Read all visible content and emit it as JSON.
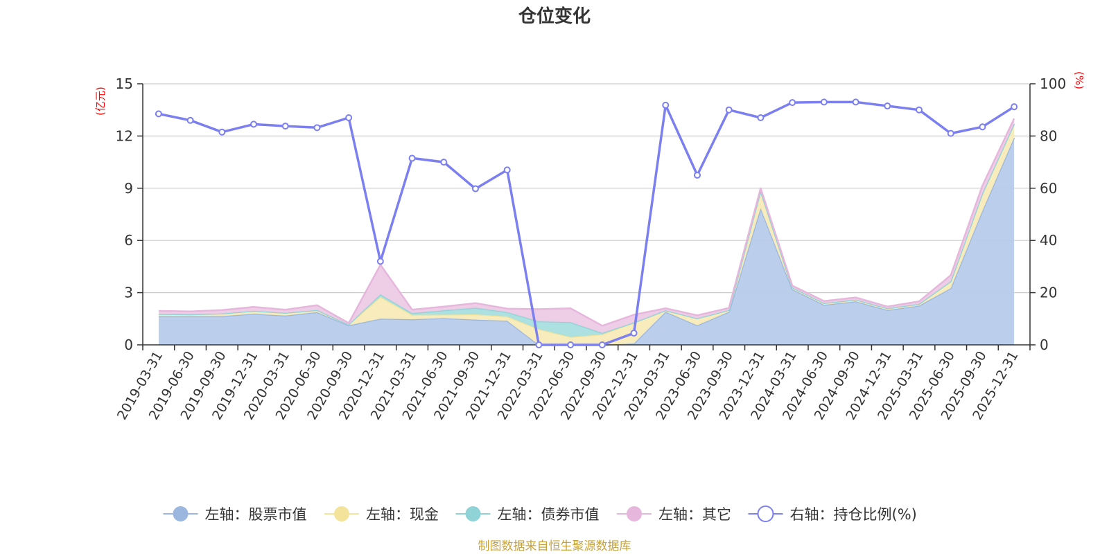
{
  "chart_data": {
    "type": "area",
    "title": "仓位变化",
    "left_axis": {
      "unit": "(亿元)",
      "ylim": [
        0,
        15
      ],
      "ticks": [
        "0",
        "3",
        "6",
        "9",
        "12",
        "15"
      ],
      "tick_values": [
        0,
        3,
        6,
        9,
        12,
        15
      ]
    },
    "right_axis": {
      "unit": "(%)",
      "ylim": [
        0,
        100
      ],
      "ticks": [
        "0",
        "20",
        "40",
        "60",
        "80",
        "100"
      ],
      "tick_values": [
        0,
        20,
        40,
        60,
        80,
        100
      ]
    },
    "categories": [
      "2019-03-31",
      "2019-06-30",
      "2019-09-30",
      "2019-12-31",
      "2020-03-31",
      "2020-06-30",
      "2020-09-30",
      "2020-12-31",
      "2021-03-31",
      "2021-06-30",
      "2021-09-30",
      "2021-12-31",
      "2022-03-31",
      "2022-06-30",
      "2022-09-30",
      "2022-12-31",
      "2023-03-31",
      "2023-06-30",
      "2023-09-30",
      "2023-12-31",
      "2024-03-31",
      "2024-06-30",
      "2024-09-30",
      "2024-12-31",
      "2025-03-31",
      "2025-06-30",
      "2025-09-30",
      "2025-12-31"
    ],
    "series": [
      {
        "name": "左轴：股票市值",
        "axis": "left",
        "color": "#9bb7e0",
        "fill": "#b7cbea",
        "values": [
          1.65,
          1.65,
          1.65,
          1.78,
          1.68,
          1.88,
          1.12,
          1.5,
          1.47,
          1.53,
          1.45,
          1.38,
          0.0,
          0.0,
          0.0,
          0.08,
          1.9,
          1.12,
          1.9,
          7.85,
          3.2,
          2.3,
          2.5,
          2.0,
          2.25,
          3.25,
          7.7,
          11.9
        ]
      },
      {
        "name": "左轴：现金",
        "axis": "left",
        "color": "#f4e39a",
        "fill": "#f8ebb8",
        "values": [
          0.12,
          0.1,
          0.15,
          0.17,
          0.16,
          0.12,
          0.05,
          1.25,
          0.25,
          0.2,
          0.3,
          0.25,
          0.9,
          0.45,
          0.6,
          1.2,
          0.08,
          0.4,
          0.1,
          1.0,
          0.1,
          0.1,
          0.1,
          0.1,
          0.1,
          0.4,
          1.0,
          0.8
        ]
      },
      {
        "name": "左轴：债券市值",
        "axis": "left",
        "color": "#8fd3d6",
        "fill": "#a9dede",
        "values": [
          0.0,
          0.0,
          0.0,
          0.0,
          0.0,
          0.0,
          0.0,
          0.15,
          0.1,
          0.25,
          0.38,
          0.25,
          0.45,
          0.85,
          0.08,
          0.0,
          0.0,
          0.0,
          0.0,
          0.0,
          0.0,
          0.0,
          0.0,
          0.0,
          0.0,
          0.0,
          0.0,
          0.0
        ]
      },
      {
        "name": "左轴：其它",
        "axis": "left",
        "color": "#e6b6dc",
        "fill": "#eccbe5",
        "values": [
          0.18,
          0.17,
          0.2,
          0.23,
          0.18,
          0.28,
          0.08,
          1.7,
          0.2,
          0.22,
          0.27,
          0.2,
          0.7,
          0.8,
          0.42,
          0.45,
          0.12,
          0.18,
          0.12,
          0.15,
          0.1,
          0.12,
          0.12,
          0.1,
          0.15,
          0.35,
          0.45,
          0.3
        ]
      },
      {
        "name": "右轴：持仓比例(%)",
        "axis": "right",
        "color": "#7b7ff0",
        "values": [
          88.5,
          86.0,
          81.5,
          84.5,
          83.8,
          83.2,
          87.0,
          32.0,
          71.5,
          70.0,
          59.8,
          67.0,
          0.0,
          0.0,
          0.0,
          4.5,
          91.8,
          65.0,
          90.0,
          87.0,
          92.8,
          93.0,
          93.0,
          91.5,
          90.0,
          81.0,
          83.5,
          91.2
        ]
      }
    ],
    "legend_position": "bottom-center",
    "grid": true
  },
  "source_note": "制图数据来自恒生聚源数据库",
  "colors": {
    "axis_left_unit": "#ff0000",
    "axis_right_unit": "#ff0000",
    "source_note": "#c8a23a",
    "grid": "#cccccc",
    "axis": "#333333"
  }
}
